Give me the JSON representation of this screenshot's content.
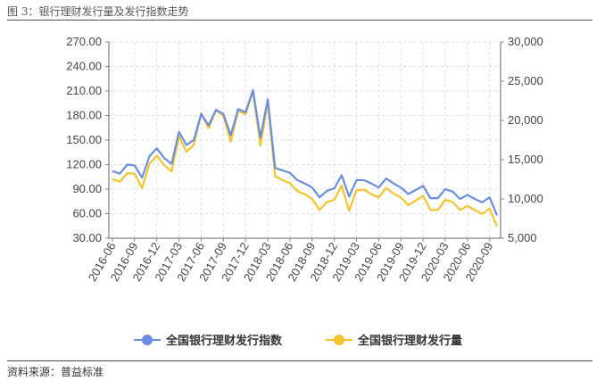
{
  "title": "图 3：银行理财发行量及发行指数走势",
  "source": "资料来源：普益标准",
  "chart_data": {
    "type": "line",
    "left_axis": {
      "min": 30,
      "max": 270,
      "ticks": [
        "30.00",
        "60.00",
        "90.00",
        "120.00",
        "150.00",
        "180.00",
        "210.00",
        "240.00",
        "270.00"
      ]
    },
    "right_axis": {
      "min": 5000,
      "max": 30000,
      "ticks": [
        "5,000",
        "10,000",
        "15,000",
        "20,000",
        "25,000",
        "30,000"
      ]
    },
    "x_ticks": [
      "2016-06",
      "2016-09",
      "2016-12",
      "2017-03",
      "2017-06",
      "2017-09",
      "2017-12",
      "2018-03",
      "2018-06",
      "2018-09",
      "2018-12",
      "2019-03",
      "2019-06",
      "2019-09",
      "2019-12",
      "2020-03",
      "2020-06",
      "2020-09"
    ],
    "categories": [
      "2016-06",
      "2016-07",
      "2016-08",
      "2016-09",
      "2016-10",
      "2016-11",
      "2016-12",
      "2017-01",
      "2017-02",
      "2017-03",
      "2017-04",
      "2017-05",
      "2017-06",
      "2017-07",
      "2017-08",
      "2017-09",
      "2017-10",
      "2017-11",
      "2017-12",
      "2018-01",
      "2018-02",
      "2018-03",
      "2018-04",
      "2018-05",
      "2018-06",
      "2018-07",
      "2018-08",
      "2018-09",
      "2018-10",
      "2018-11",
      "2018-12",
      "2019-01",
      "2019-02",
      "2019-03",
      "2019-04",
      "2019-05",
      "2019-06",
      "2019-07",
      "2019-08",
      "2019-09",
      "2019-10",
      "2019-11",
      "2019-12",
      "2020-01",
      "2020-02",
      "2020-03",
      "2020-04",
      "2020-05",
      "2020-06",
      "2020-07",
      "2020-08",
      "2020-09",
      "2020-10"
    ],
    "series": [
      {
        "name": "全国银行理财发行指数",
        "axis": "left",
        "color": "#6A8EE0",
        "values": [
          112,
          109,
          120,
          119,
          104,
          130,
          140,
          128,
          121,
          160,
          144,
          150,
          182,
          168,
          187,
          182,
          156,
          188,
          184,
          211,
          153,
          200,
          116,
          113,
          110,
          101,
          97,
          92,
          80,
          88,
          91,
          107,
          81,
          101,
          101,
          97,
          92,
          103,
          97,
          92,
          84,
          89,
          94,
          79,
          79,
          90,
          87,
          78,
          83,
          78,
          74,
          80,
          58
        ]
      },
      {
        "name": "全国银行理财发行量",
        "axis": "right",
        "color": "#F4C430",
        "values": [
          12500,
          12200,
          13300,
          13200,
          11400,
          14500,
          15500,
          14300,
          13500,
          18000,
          16000,
          16900,
          20900,
          19000,
          21300,
          20600,
          17300,
          21200,
          20800,
          23700,
          16800,
          22300,
          12900,
          12400,
          12000,
          11000,
          10600,
          10000,
          8600,
          9600,
          9900,
          11700,
          8500,
          11100,
          11200,
          10600,
          10200,
          11400,
          10700,
          10200,
          9200,
          9800,
          10400,
          8600,
          8600,
          9900,
          9600,
          8600,
          9100,
          8600,
          8100,
          8800,
          6500
        ]
      }
    ]
  }
}
